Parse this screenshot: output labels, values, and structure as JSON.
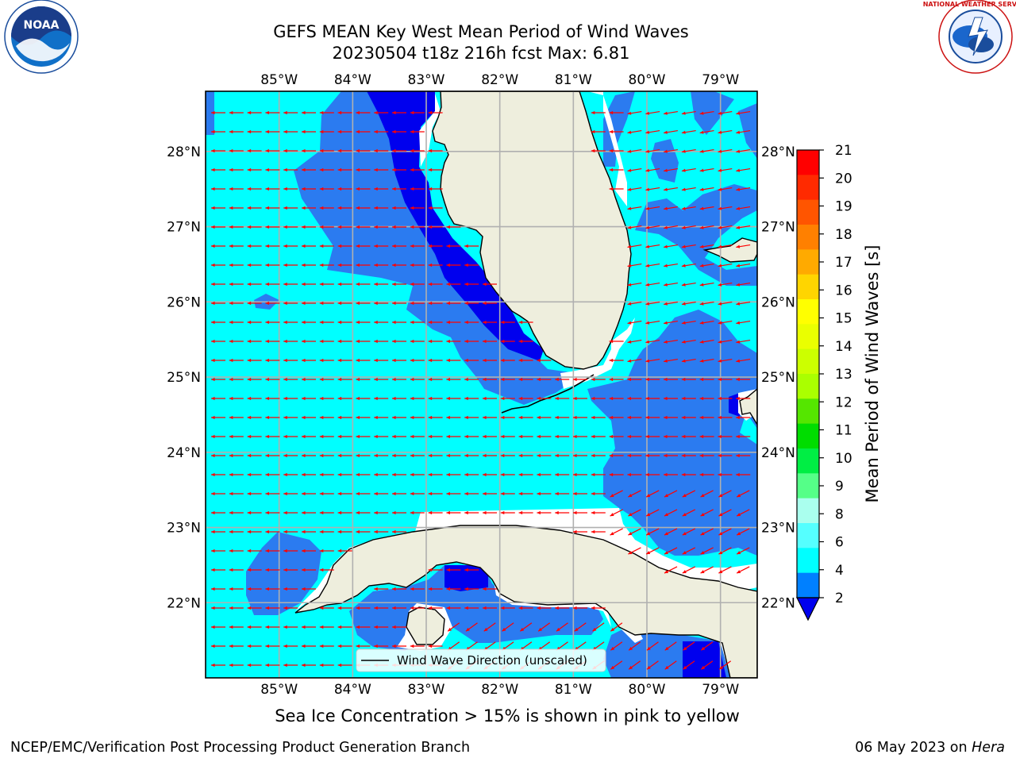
{
  "title": {
    "line1": "GEFS MEAN Key West Mean Period of Wind Waves",
    "line2": "20230504 t18z 216h fcst   Max: 6.81"
  },
  "logos": {
    "left": {
      "name": "noaa-logo",
      "text": "NOAA",
      "ring_text": "NATIONAL OCEANIC AND ATMOSPHERIC ADMINISTRATION · U.S. DEPARTMENT OF COMMERCE"
    },
    "right": {
      "name": "nws-logo",
      "ring_text": "NATIONAL WEATHER SERVICE"
    }
  },
  "map": {
    "lon_range": [
      -86.0,
      -78.5
    ],
    "lat_range": [
      21.0,
      28.8
    ],
    "lon_ticks": [
      "85°W",
      "84°W",
      "83°W",
      "82°W",
      "81°W",
      "80°W",
      "79°W"
    ],
    "lat_ticks": [
      "28°N",
      "27°N",
      "26°N",
      "25°N",
      "24°N",
      "23°N",
      "22°N"
    ],
    "lon_tick_values": [
      -85,
      -84,
      -83,
      -82,
      -81,
      -80,
      -79
    ],
    "lat_tick_values": [
      28,
      27,
      26,
      25,
      24,
      23,
      22
    ],
    "grid": true,
    "legend": {
      "label": "Wind Wave Direction (unscaled)",
      "placement": "bottom-center"
    },
    "colors": {
      "land": "#eeeedd",
      "band_2_4": "#2b7bf0",
      "band_4_6": "#00ffff",
      "band_lt_2": "#0000ee",
      "arrow": "#ff0000",
      "grid": "#b0b0b0"
    }
  },
  "colorbar": {
    "label": "Mean Period of Wind Waves [s]",
    "ticks": [
      "21",
      "20",
      "19",
      "18",
      "17",
      "16",
      "15",
      "14",
      "13",
      "12",
      "11",
      "10",
      "9",
      "8",
      "6",
      "4",
      "2"
    ],
    "colors": [
      "#ff0000",
      "#ff2a00",
      "#ff5500",
      "#ff8000",
      "#ffaa00",
      "#ffd500",
      "#ffff00",
      "#eaff00",
      "#ccff00",
      "#aaff00",
      "#55e600",
      "#00dd00",
      "#00ee44",
      "#55ff88",
      "#aaffee",
      "#55ffff",
      "#00ffff",
      "#0080ff"
    ],
    "extend": "min",
    "extend_color": "#0000ee"
  },
  "notes": {
    "sea_ice": "Sea Ice Concentration > 15% is shown in pink to yellow"
  },
  "footer": {
    "left": "NCEP/EMC/Verification Post Processing Product Generation Branch",
    "right_date": "06 May 2023 on ",
    "right_host": "Hera"
  }
}
